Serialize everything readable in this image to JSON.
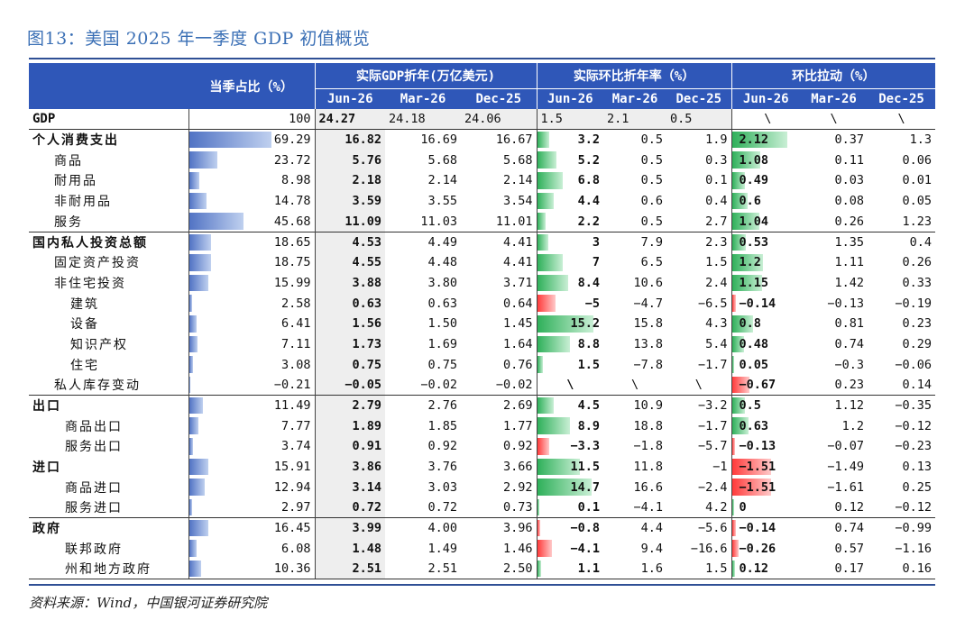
{
  "figure_title": "图13：美国 2025 年一季度 GDP 初值概览",
  "source": "资料来源：Wind，中国银河证券研究院",
  "headers": {
    "share": "当季占比（%）",
    "real_gdp": "实际GDP折年(万亿美元)",
    "qoq_ann": "实际环比折年率（%）",
    "contrib": "环比拉动（%）",
    "periods": [
      "Jun-26",
      "Mar-26",
      "Dec-25"
    ]
  },
  "colors": {
    "header_bg": "#2f57b8",
    "share_bar": "#5173c4",
    "pos_bar": "#2fb05a",
    "neg_bar": "#ff3b3b"
  },
  "scales": {
    "share_max": 100,
    "qoq_max": 16,
    "contrib_max": 2.2
  },
  "rows": [
    {
      "label": "GDP",
      "level": "gdp",
      "share": "100",
      "share_v": 100,
      "g": [
        "24.27",
        "24.18",
        "24.06"
      ],
      "q": [
        "1.5",
        "2.1",
        "0.5"
      ],
      "q_v": null,
      "c": [
        "\\",
        "\\",
        "\\"
      ],
      "c_v": null
    },
    {
      "label": "个人消费支出",
      "level": "top",
      "sep": true,
      "share": "69.29",
      "share_v": 69.29,
      "g": [
        "16.82",
        "16.69",
        "16.67"
      ],
      "q": [
        "3.2",
        "0.5",
        "1.9"
      ],
      "q_v": 3.2,
      "c": [
        "2.12",
        "0.37",
        "1.3"
      ],
      "c_v": 2.12
    },
    {
      "label": "商品",
      "level": "sub",
      "share": "23.72",
      "share_v": 23.72,
      "g": [
        "5.76",
        "5.68",
        "5.68"
      ],
      "q": [
        "5.2",
        "0.5",
        "0.3"
      ],
      "q_v": 5.2,
      "c": [
        "1.08",
        "0.11",
        "0.06"
      ],
      "c_v": 1.08
    },
    {
      "label": "耐用品",
      "level": "sub",
      "share": "8.98",
      "share_v": 8.98,
      "g": [
        "2.18",
        "2.14",
        "2.14"
      ],
      "q": [
        "6.8",
        "0.5",
        "0.1"
      ],
      "q_v": 6.8,
      "c": [
        "0.49",
        "0.03",
        "0.01"
      ],
      "c_v": 0.49
    },
    {
      "label": "非耐用品",
      "level": "sub",
      "share": "14.78",
      "share_v": 14.78,
      "g": [
        "3.59",
        "3.55",
        "3.54"
      ],
      "q": [
        "4.4",
        "0.6",
        "0.4"
      ],
      "q_v": 4.4,
      "c": [
        "0.6",
        "0.08",
        "0.05"
      ],
      "c_v": 0.6
    },
    {
      "label": "服务",
      "level": "sub",
      "share": "45.68",
      "share_v": 45.68,
      "g": [
        "11.09",
        "11.03",
        "11.01"
      ],
      "q": [
        "2.2",
        "0.5",
        "2.7"
      ],
      "q_v": 2.2,
      "c": [
        "1.04",
        "0.26",
        "1.23"
      ],
      "c_v": 1.04
    },
    {
      "label": "国内私人投资总额",
      "level": "top",
      "sep": true,
      "share": "18.65",
      "share_v": 18.65,
      "g": [
        "4.53",
        "4.49",
        "4.41"
      ],
      "q": [
        "3",
        "7.9",
        "2.3"
      ],
      "q_v": 3,
      "c": [
        "0.53",
        "1.35",
        "0.4"
      ],
      "c_v": 0.53
    },
    {
      "label": "固定资产投资",
      "level": "sub",
      "share": "18.75",
      "share_v": 18.75,
      "g": [
        "4.55",
        "4.48",
        "4.41"
      ],
      "q": [
        "7",
        "6.5",
        "1.5"
      ],
      "q_v": 7,
      "c": [
        "1.2",
        "1.11",
        "0.26"
      ],
      "c_v": 1.2
    },
    {
      "label": "非住宅投资",
      "level": "sub",
      "share": "15.99",
      "share_v": 15.99,
      "g": [
        "3.88",
        "3.80",
        "3.71"
      ],
      "q": [
        "8.4",
        "10.6",
        "2.4"
      ],
      "q_v": 8.4,
      "c": [
        "1.15",
        "1.42",
        "0.33"
      ],
      "c_v": 1.15
    },
    {
      "label": "建筑",
      "level": "nested",
      "share": "2.58",
      "share_v": 2.58,
      "g": [
        "0.63",
        "0.63",
        "0.64"
      ],
      "q": [
        "−5",
        "−4.7",
        "−6.5"
      ],
      "q_v": -5,
      "c": [
        "−0.14",
        "−0.13",
        "−0.19"
      ],
      "c_v": -0.14
    },
    {
      "label": "设备",
      "level": "nested",
      "share": "6.41",
      "share_v": 6.41,
      "g": [
        "1.56",
        "1.50",
        "1.45"
      ],
      "q": [
        "15.2",
        "15.8",
        "4.3"
      ],
      "q_v": 15.2,
      "c": [
        "0.8",
        "0.81",
        "0.23"
      ],
      "c_v": 0.8
    },
    {
      "label": "知识产权",
      "level": "nested",
      "share": "7.11",
      "share_v": 7.11,
      "g": [
        "1.73",
        "1.69",
        "1.64"
      ],
      "q": [
        "8.8",
        "13.8",
        "5.4"
      ],
      "q_v": 8.8,
      "c": [
        "0.48",
        "0.74",
        "0.29"
      ],
      "c_v": 0.48
    },
    {
      "label": "住宅",
      "level": "nested",
      "share": "3.08",
      "share_v": 3.08,
      "g": [
        "0.75",
        "0.75",
        "0.76"
      ],
      "q": [
        "1.5",
        "−7.8",
        "−1.7"
      ],
      "q_v": 1.5,
      "c": [
        "0.05",
        "−0.3",
        "−0.06"
      ],
      "c_v": 0.05
    },
    {
      "label": "私人库存变动",
      "level": "sub",
      "share": "−0.21",
      "share_v": -0.21,
      "g": [
        "−0.05",
        "−0.02",
        "−0.02"
      ],
      "q": [
        "\\",
        "\\",
        "\\"
      ],
      "q_v": null,
      "c": [
        "−0.67",
        "0.23",
        "0.14"
      ],
      "c_v": -0.67
    },
    {
      "label": "出口",
      "level": "top",
      "sep": true,
      "share": "11.49",
      "share_v": 11.49,
      "g": [
        "2.79",
        "2.76",
        "2.69"
      ],
      "q": [
        "4.5",
        "10.9",
        "−3.2"
      ],
      "q_v": 4.5,
      "c": [
        "0.5",
        "1.12",
        "−0.35"
      ],
      "c_v": 0.5
    },
    {
      "label": "商品出口",
      "level": "sub2",
      "share": "7.77",
      "share_v": 7.77,
      "g": [
        "1.89",
        "1.85",
        "1.77"
      ],
      "q": [
        "8.9",
        "18.8",
        "−1.7"
      ],
      "q_v": 8.9,
      "c": [
        "0.63",
        "1.2",
        "−0.12"
      ],
      "c_v": 0.63
    },
    {
      "label": "服务出口",
      "level": "sub2",
      "share": "3.74",
      "share_v": 3.74,
      "g": [
        "0.91",
        "0.92",
        "0.92"
      ],
      "q": [
        "−3.3",
        "−1.8",
        "−5.7"
      ],
      "q_v": -3.3,
      "c": [
        "−0.13",
        "−0.07",
        "−0.23"
      ],
      "c_v": -0.13
    },
    {
      "label": "进口",
      "level": "top",
      "share": "15.91",
      "share_v": 15.91,
      "g": [
        "3.86",
        "3.76",
        "3.66"
      ],
      "q": [
        "11.5",
        "11.8",
        "−1"
      ],
      "q_v": 11.5,
      "c": [
        "−1.51",
        "−1.49",
        "0.13"
      ],
      "c_v": -1.51
    },
    {
      "label": "商品进口",
      "level": "sub2",
      "share": "12.94",
      "share_v": 12.94,
      "g": [
        "3.14",
        "3.03",
        "2.92"
      ],
      "q": [
        "14.7",
        "16.6",
        "−2.4"
      ],
      "q_v": 14.7,
      "c": [
        "−1.51",
        "−1.61",
        "0.25"
      ],
      "c_v": -1.51
    },
    {
      "label": "服务进口",
      "level": "sub2",
      "share": "2.97",
      "share_v": 2.97,
      "g": [
        "0.72",
        "0.72",
        "0.73"
      ],
      "q": [
        "0.1",
        "−4.1",
        "4.2"
      ],
      "q_v": 0.1,
      "c": [
        "0",
        "0.12",
        "−0.12"
      ],
      "c_v": 0
    },
    {
      "label": "政府",
      "level": "top",
      "sep": true,
      "share": "16.45",
      "share_v": 16.45,
      "g": [
        "3.99",
        "4.00",
        "3.96"
      ],
      "q": [
        "−0.8",
        "4.4",
        "−5.6"
      ],
      "q_v": -0.8,
      "c": [
        "−0.14",
        "0.74",
        "−0.99"
      ],
      "c_v": -0.14
    },
    {
      "label": "联邦政府",
      "level": "sub2",
      "share": "6.08",
      "share_v": 6.08,
      "g": [
        "1.48",
        "1.49",
        "1.46"
      ],
      "q": [
        "−4.1",
        "9.4",
        "−16.6"
      ],
      "q_v": -4.1,
      "c": [
        "−0.26",
        "0.57",
        "−1.16"
      ],
      "c_v": -0.26
    },
    {
      "label": "州和地方政府",
      "level": "sub2",
      "last": true,
      "share": "10.36",
      "share_v": 10.36,
      "g": [
        "2.51",
        "2.51",
        "2.50"
      ],
      "q": [
        "1.1",
        "1.6",
        "1.5"
      ],
      "q_v": 1.1,
      "c": [
        "0.12",
        "0.17",
        "0.16"
      ],
      "c_v": 0.12
    }
  ]
}
